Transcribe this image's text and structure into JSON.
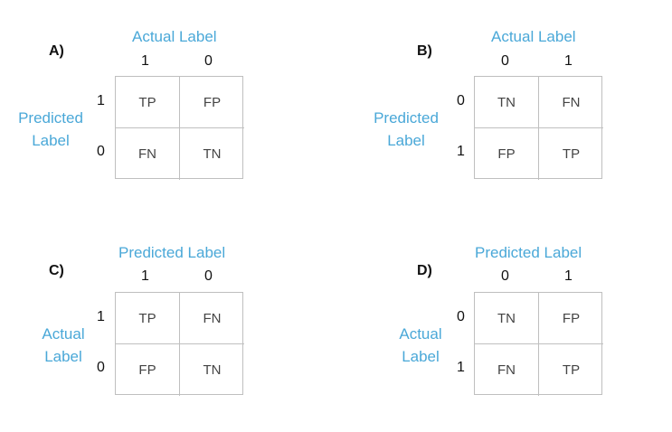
{
  "colors": {
    "label_blue": "#4aa8d8",
    "text": "#111111",
    "cell_text": "#444444",
    "grid": "#bfbfbf"
  },
  "panels": [
    {
      "letter": "A)",
      "top_title": "Actual Label",
      "side_title": "Predicted\nLabel",
      "col_ticks": [
        "1",
        "0"
      ],
      "row_ticks": [
        "1",
        "0"
      ],
      "cells": [
        [
          "TP",
          "FP"
        ],
        [
          "FN",
          "TN"
        ]
      ]
    },
    {
      "letter": "B)",
      "top_title": "Actual Label",
      "side_title": "Predicted\nLabel",
      "col_ticks": [
        "0",
        "1"
      ],
      "row_ticks": [
        "0",
        "1"
      ],
      "cells": [
        [
          "TN",
          "FN"
        ],
        [
          "FP",
          "TP"
        ]
      ]
    },
    {
      "letter": "C)",
      "top_title": "Predicted Label",
      "side_title": "Actual\nLabel",
      "col_ticks": [
        "1",
        "0"
      ],
      "row_ticks": [
        "1",
        "0"
      ],
      "cells": [
        [
          "TP",
          "FN"
        ],
        [
          "FP",
          "TN"
        ]
      ]
    },
    {
      "letter": "D)",
      "top_title": "Predicted Label",
      "side_title": "Actual\nLabel",
      "col_ticks": [
        "0",
        "1"
      ],
      "row_ticks": [
        "0",
        "1"
      ],
      "cells": [
        [
          "TN",
          "FP"
        ],
        [
          "FN",
          "TP"
        ]
      ]
    }
  ]
}
